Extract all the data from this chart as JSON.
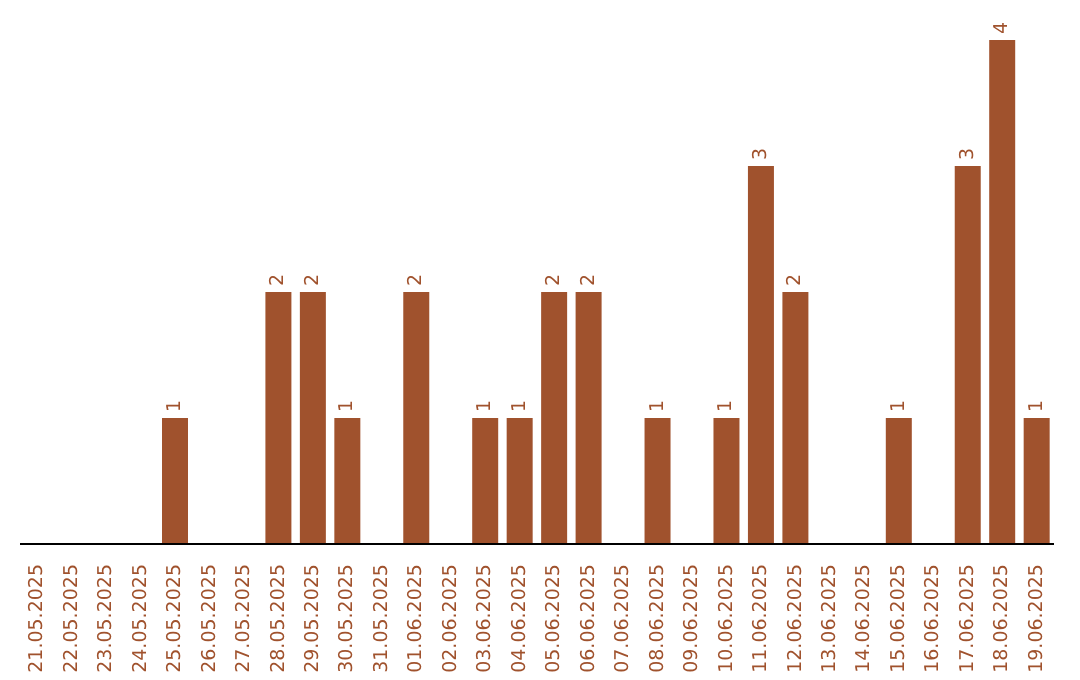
{
  "chart_data": {
    "type": "bar",
    "categories": [
      "21.05.2025",
      "22.05.2025",
      "23.05.2025",
      "24.05.2025",
      "25.05.2025",
      "26.05.2025",
      "27.05.2025",
      "28.05.2025",
      "29.05.2025",
      "30.05.2025",
      "31.05.2025",
      "01.06.2025",
      "02.06.2025",
      "03.06.2025",
      "04.06.2025",
      "05.06.2025",
      "06.06.2025",
      "07.06.2025",
      "08.06.2025",
      "09.06.2025",
      "10.06.2025",
      "11.06.2025",
      "12.06.2025",
      "13.06.2025",
      "14.06.2025",
      "15.06.2025",
      "16.06.2025",
      "17.06.2025",
      "18.06.2025",
      "19.06.2025"
    ],
    "values": [
      0,
      0,
      0,
      0,
      1,
      0,
      0,
      2,
      2,
      1,
      0,
      2,
      0,
      1,
      1,
      2,
      2,
      0,
      1,
      0,
      1,
      3,
      2,
      0,
      0,
      1,
      0,
      3,
      4,
      1
    ],
    "value_labels": [
      null,
      null,
      null,
      null,
      "1",
      null,
      null,
      "2",
      "2",
      "1",
      null,
      "2",
      null,
      "1",
      "1",
      "2",
      "2",
      null,
      "1",
      null,
      "1",
      "3",
      "2",
      null,
      null,
      "1",
      null,
      "3",
      "4",
      "1"
    ],
    "color": "#a0522d",
    "tick_labels": "x",
    "grid": false,
    "legend": false
  }
}
